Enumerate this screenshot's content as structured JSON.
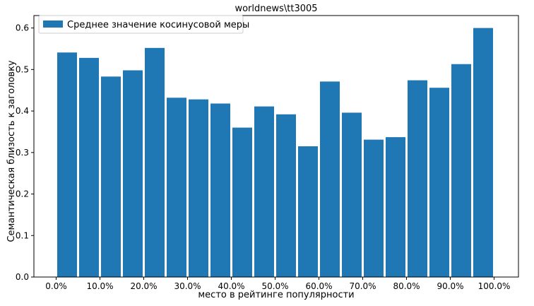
{
  "chart_data": {
    "type": "bar",
    "title": "worldnews\\tt3005",
    "xlabel": "место в рейтинге популярности",
    "ylabel": "Семантическая близость к заголовку",
    "legend": {
      "position": "top-left",
      "entries": [
        "Среднее значение косинусовой меры"
      ]
    },
    "ylim": [
      0,
      0.63
    ],
    "y_ticks": [
      0.0,
      0.1,
      0.2,
      0.3,
      0.4,
      0.5,
      0.6
    ],
    "y_tick_labels": [
      "0.0",
      "0.1",
      "0.2",
      "0.3",
      "0.4",
      "0.5",
      "0.6"
    ],
    "x_tick_labels": [
      "0.0%",
      "10.0%",
      "20.0%",
      "30.0%",
      "40.0%",
      "50.0%",
      "60.0%",
      "70.0%",
      "80.0%",
      "90.0%",
      "100.0%"
    ],
    "series": [
      {
        "name": "Среднее значение косинусовой меры",
        "color": "#1f77b4",
        "values": [
          0.541,
          0.528,
          0.483,
          0.498,
          0.552,
          0.432,
          0.428,
          0.418,
          0.36,
          0.411,
          0.392,
          0.315,
          0.471,
          0.396,
          0.331,
          0.337,
          0.474,
          0.456,
          0.513,
          0.6
        ]
      }
    ]
  }
}
